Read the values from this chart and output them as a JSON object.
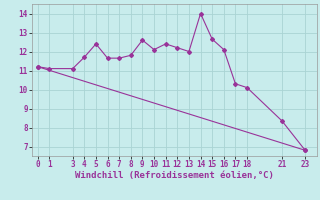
{
  "line1_x": [
    0,
    1,
    3,
    4,
    5,
    6,
    7,
    8,
    9,
    10,
    11,
    12,
    13,
    14,
    15,
    16,
    17,
    18,
    21,
    23
  ],
  "line1_y": [
    11.2,
    11.1,
    11.1,
    11.7,
    12.4,
    11.65,
    11.65,
    11.8,
    12.6,
    12.1,
    12.4,
    12.2,
    12.0,
    14.0,
    12.65,
    12.1,
    10.3,
    10.1,
    8.35,
    6.8
  ],
  "line2_x": [
    0,
    23
  ],
  "line2_y": [
    11.2,
    6.8
  ],
  "line_color": "#993399",
  "bg_color": "#c8ecec",
  "grid_color": "#aad4d4",
  "xticks": [
    0,
    1,
    3,
    4,
    5,
    6,
    7,
    8,
    9,
    10,
    11,
    12,
    13,
    14,
    15,
    16,
    17,
    18,
    21,
    23
  ],
  "yticks": [
    7,
    8,
    9,
    10,
    11,
    12,
    13,
    14
  ],
  "xlabel": "Windchill (Refroidissement éolien,°C)",
  "ylim": [
    6.5,
    14.5
  ],
  "xlim": [
    -0.5,
    24.0
  ],
  "tick_fontsize": 5.5,
  "label_fontsize": 6.5,
  "marker": "D",
  "marker_size": 2.0,
  "linewidth": 0.8
}
